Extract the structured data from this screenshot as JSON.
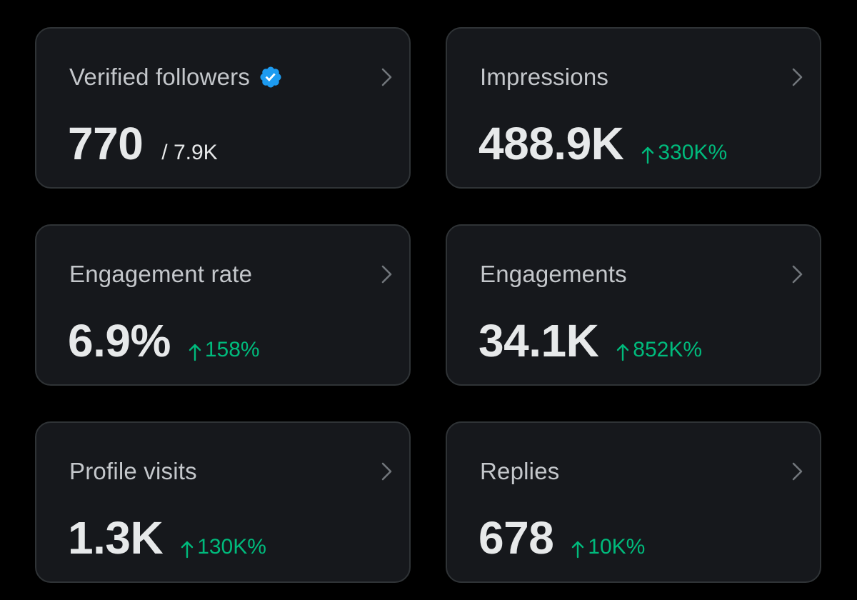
{
  "colors": {
    "background": "#000000",
    "card_bg": "#16181c",
    "card_border": "#2f3336",
    "label": "#c4c7cb",
    "value": "#e7e9ea",
    "positive": "#00ba7c",
    "verified": "#1d9bf0"
  },
  "cards": [
    {
      "label": "Verified followers",
      "value": "770",
      "total": "/ 7.9K",
      "icon": "verified-badge-icon"
    },
    {
      "label": "Impressions",
      "value": "488.9K",
      "change": "330K%",
      "change_icon": "arrow-up-icon"
    },
    {
      "label": "Engagement rate",
      "value": "6.9%",
      "change": "158%",
      "change_icon": "arrow-up-icon"
    },
    {
      "label": "Engagements",
      "value": "34.1K",
      "change": "852K%",
      "change_icon": "arrow-up-icon"
    },
    {
      "label": "Profile visits",
      "value": "1.3K",
      "change": "130K%",
      "change_icon": "arrow-up-icon"
    },
    {
      "label": "Replies",
      "value": "678",
      "change": "10K%",
      "change_icon": "arrow-up-icon"
    }
  ],
  "chevron_icon": "chevron-right-icon"
}
